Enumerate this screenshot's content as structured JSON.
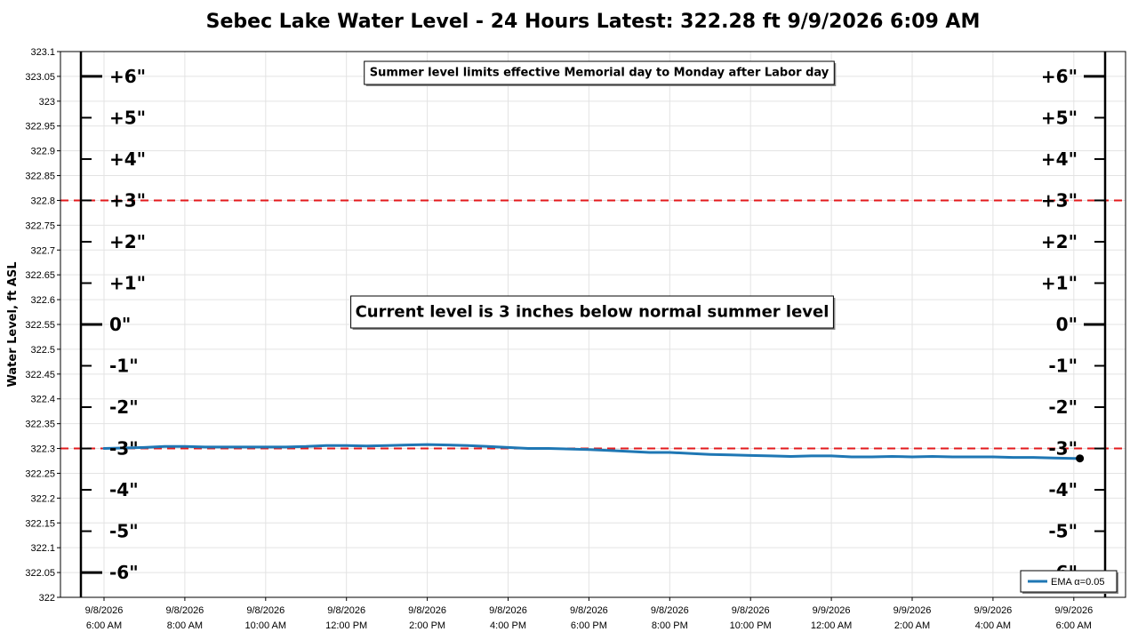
{
  "chart_data": {
    "type": "line",
    "title": "Sebec Lake Water Level - 24 Hours   Latest: 322.28 ft   9/9/2026 6:09 AM",
    "ylabel": "Water Level, ft ASL",
    "xlabel": "",
    "ylim": [
      322,
      323.1
    ],
    "y_ticks": [
      "322",
      "322.05",
      "322.1",
      "322.15",
      "322.2",
      "322.25",
      "322.3",
      "322.35",
      "322.4",
      "322.45",
      "322.5",
      "322.55",
      "322.6",
      "322.65",
      "322.7",
      "322.75",
      "322.8",
      "322.85",
      "322.9",
      "322.95",
      "323",
      "323.05",
      "323.1"
    ],
    "x_tick_labels": [
      [
        "9/8/2026",
        "6:00 AM"
      ],
      [
        "9/8/2026",
        "8:00 AM"
      ],
      [
        "9/8/2026",
        "10:00 AM"
      ],
      [
        "9/8/2026",
        "12:00 PM"
      ],
      [
        "9/8/2026",
        "2:00 PM"
      ],
      [
        "9/8/2026",
        "4:00 PM"
      ],
      [
        "9/8/2026",
        "6:00 PM"
      ],
      [
        "9/8/2026",
        "8:00 PM"
      ],
      [
        "9/8/2026",
        "10:00 PM"
      ],
      [
        "9/9/2026",
        "12:00 AM"
      ],
      [
        "9/9/2026",
        "2:00 AM"
      ],
      [
        "9/9/2026",
        "4:00 AM"
      ],
      [
        "9/9/2026",
        "6:00 AM"
      ]
    ],
    "grid": true,
    "legend_position": "bottom-right",
    "series": [
      {
        "name": "EMA α=0.05",
        "color": "#1f77b4",
        "points": [
          [
            "9/8/2026 6:00 AM",
            322.3
          ],
          [
            "9/8/2026 6:30 AM",
            322.301
          ],
          [
            "9/8/2026 7:00 AM",
            322.302
          ],
          [
            "9/8/2026 7:30 AM",
            322.304
          ],
          [
            "9/8/2026 8:00 AM",
            322.304
          ],
          [
            "9/8/2026 8:30 AM",
            322.303
          ],
          [
            "9/8/2026 9:00 AM",
            322.303
          ],
          [
            "9/8/2026 9:30 AM",
            322.303
          ],
          [
            "9/8/2026 10:00 AM",
            322.303
          ],
          [
            "9/8/2026 10:30 AM",
            322.303
          ],
          [
            "9/8/2026 11:00 AM",
            322.304
          ],
          [
            "9/8/2026 11:30 AM",
            322.306
          ],
          [
            "9/8/2026 12:00 PM",
            322.306
          ],
          [
            "9/8/2026 12:30 PM",
            322.305
          ],
          [
            "9/8/2026 1:00 PM",
            322.306
          ],
          [
            "9/8/2026 1:30 PM",
            322.307
          ],
          [
            "9/8/2026 2:00 PM",
            322.308
          ],
          [
            "9/8/2026 2:30 PM",
            322.307
          ],
          [
            "9/8/2026 3:00 PM",
            322.306
          ],
          [
            "9/8/2026 3:30 PM",
            322.304
          ],
          [
            "9/8/2026 4:00 PM",
            322.302
          ],
          [
            "9/8/2026 4:30 PM",
            322.3
          ],
          [
            "9/8/2026 5:00 PM",
            322.3
          ],
          [
            "9/8/2026 5:30 PM",
            322.299
          ],
          [
            "9/8/2026 6:00 PM",
            322.298
          ],
          [
            "9/8/2026 6:30 PM",
            322.296
          ],
          [
            "9/8/2026 7:00 PM",
            322.294
          ],
          [
            "9/8/2026 7:30 PM",
            322.292
          ],
          [
            "9/8/2026 8:00 PM",
            322.292
          ],
          [
            "9/8/2026 8:30 PM",
            322.29
          ],
          [
            "9/8/2026 9:00 PM",
            322.288
          ],
          [
            "9/8/2026 9:30 PM",
            322.287
          ],
          [
            "9/8/2026 10:00 PM",
            322.286
          ],
          [
            "9/8/2026 10:30 PM",
            322.285
          ],
          [
            "9/8/2026 11:00 PM",
            322.284
          ],
          [
            "9/8/2026 11:30 PM",
            322.285
          ],
          [
            "9/9/2026 12:00 AM",
            322.285
          ],
          [
            "9/9/2026 12:30 AM",
            322.283
          ],
          [
            "9/9/2026 1:00 AM",
            322.283
          ],
          [
            "9/9/2026 1:30 AM",
            322.284
          ],
          [
            "9/9/2026 2:00 AM",
            322.283
          ],
          [
            "9/9/2026 2:30 AM",
            322.284
          ],
          [
            "9/9/2026 3:00 AM",
            322.283
          ],
          [
            "9/9/2026 3:30 AM",
            322.283
          ],
          [
            "9/9/2026 4:00 AM",
            322.283
          ],
          [
            "9/9/2026 4:30 AM",
            322.282
          ],
          [
            "9/9/2026 5:00 AM",
            322.282
          ],
          [
            "9/9/2026 5:30 AM",
            322.281
          ],
          [
            "9/9/2026 6:00 AM",
            322.28
          ],
          [
            "9/9/2026 6:09 AM",
            322.28
          ]
        ]
      }
    ],
    "latest_point": [
      "9/9/2026 6:09 AM",
      322.28
    ],
    "reference_lines": [
      {
        "y": 322.8,
        "style": "dashed",
        "color": "#e31a1c"
      },
      {
        "y": 322.3,
        "style": "dashed",
        "color": "#e31a1c"
      }
    ],
    "inch_scale": {
      "labels": [
        "+6\"",
        "+5\"",
        "+4\"",
        "+3\"",
        "+2\"",
        "+1\"",
        "0\"",
        "-1\"",
        "-2\"",
        "-3\"",
        "-4\"",
        "-5\"",
        "-6\""
      ],
      "offsets_in": [
        6,
        5,
        4,
        3,
        2,
        1,
        0,
        -1,
        -2,
        -3,
        -4,
        -5,
        -6
      ],
      "base_level_ft": 322.55
    },
    "annotations": {
      "top_note": "Summer level limits effective Memorial day to Monday after Labor day",
      "status_note": "Current level is 3 inches below normal summer level"
    }
  }
}
